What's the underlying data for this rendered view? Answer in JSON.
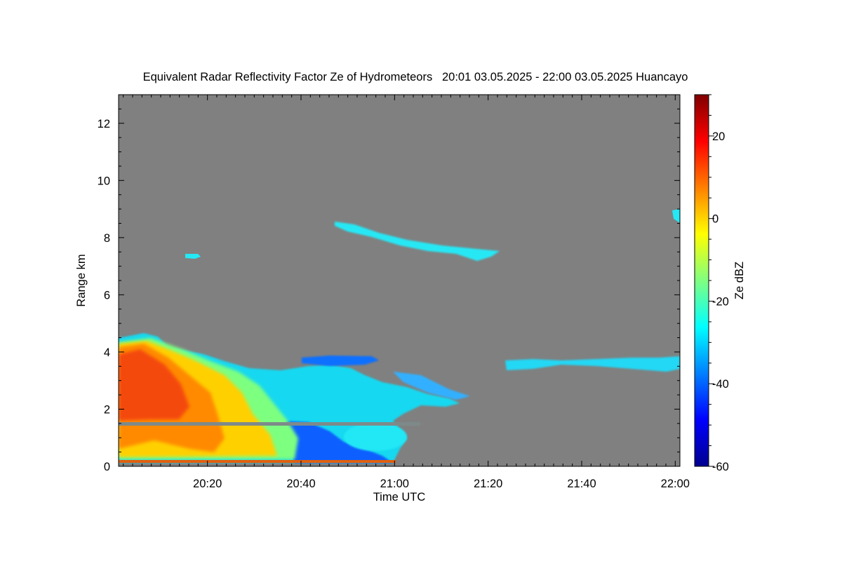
{
  "chart_data": {
    "type": "heatmap",
    "title": "Equivalent Radar Reflectivity Factor Ze of Hydrometeors   20:01 03.05.2025 - 22:00 03.05.2025 Huancayo",
    "xlabel": "Time UTC",
    "ylabel": "Range km",
    "colorbar_label": "Ze dBZ",
    "x_range": [
      "20:01",
      "22:01"
    ],
    "y_range": [
      0,
      13
    ],
    "x_ticks": [
      "20:20",
      "20:40",
      "21:00",
      "21:20",
      "21:40",
      "22:00"
    ],
    "y_ticks": [
      "0",
      "2",
      "4",
      "6",
      "8",
      "10",
      "12"
    ],
    "colorbar_range": [
      -60,
      30
    ],
    "colorbar_ticks": [
      "20",
      "0",
      "-20",
      "-40",
      "-60"
    ],
    "colormap": "jet",
    "background_color": "#808080",
    "echo_regions": [
      {
        "name": "low-level precipitation",
        "time_start": "20:01",
        "time_end": "21:02",
        "range_km": [
          0,
          4.7
        ],
        "ze_dbz": [
          -40,
          15
        ]
      },
      {
        "name": "cloud layer ~3.5 km",
        "time_start": "21:24",
        "time_end": "22:01",
        "range_km": [
          3.3,
          3.9
        ],
        "ze_dbz": [
          -35,
          -25
        ]
      },
      {
        "name": "cirrus layer ~7.5 km",
        "time_start": "20:47",
        "time_end": "21:23",
        "range_km": [
          7.1,
          8.5
        ],
        "ze_dbz": [
          -35,
          -25
        ]
      },
      {
        "name": "patch ~7.4 km",
        "time_start": "20:16",
        "time_end": "20:19",
        "range_km": [
          7.3,
          7.5
        ],
        "ze_dbz": [
          -32,
          -28
        ]
      },
      {
        "name": "patch ~8.8 km",
        "time_start": "21:59",
        "time_end": "22:01",
        "range_km": [
          8.5,
          9.0
        ],
        "ze_dbz": [
          -32,
          -28
        ]
      }
    ]
  }
}
